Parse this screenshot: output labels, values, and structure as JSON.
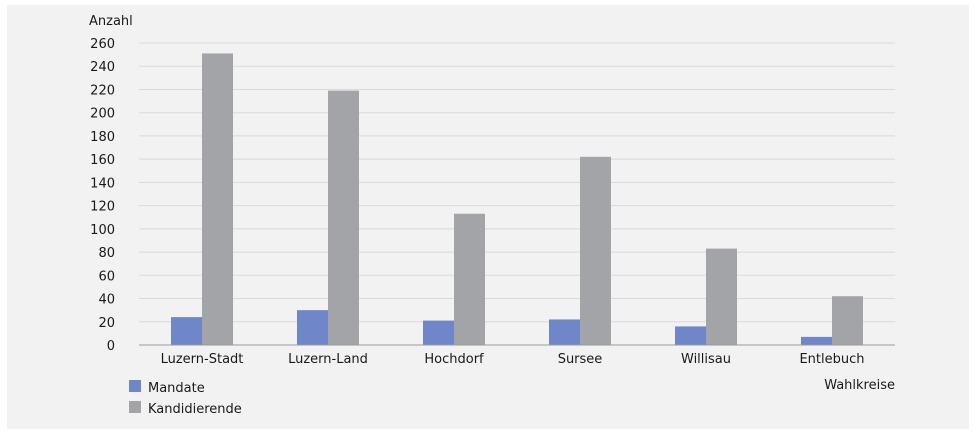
{
  "chart_data": {
    "type": "bar",
    "ylabel": "Anzahl",
    "xlabel": "Wahlkreise",
    "ylim": [
      0,
      260
    ],
    "yticks": [
      0,
      20,
      40,
      60,
      80,
      100,
      120,
      140,
      160,
      180,
      200,
      220,
      240,
      260
    ],
    "categories": [
      "Luzern-Stadt",
      "Luzern-Land",
      "Hochdorf",
      "Sursee",
      "Willisau",
      "Entlebuch"
    ],
    "series": [
      {
        "name": "Mandate",
        "color": "#6f87c8",
        "values": [
          24,
          30,
          21,
          22,
          16,
          7
        ]
      },
      {
        "name": "Kandidierende",
        "color": "#a3a4a8",
        "values": [
          251,
          219,
          113,
          162,
          83,
          42
        ]
      }
    ],
    "grid": true,
    "legend_position": "bottom-left"
  }
}
